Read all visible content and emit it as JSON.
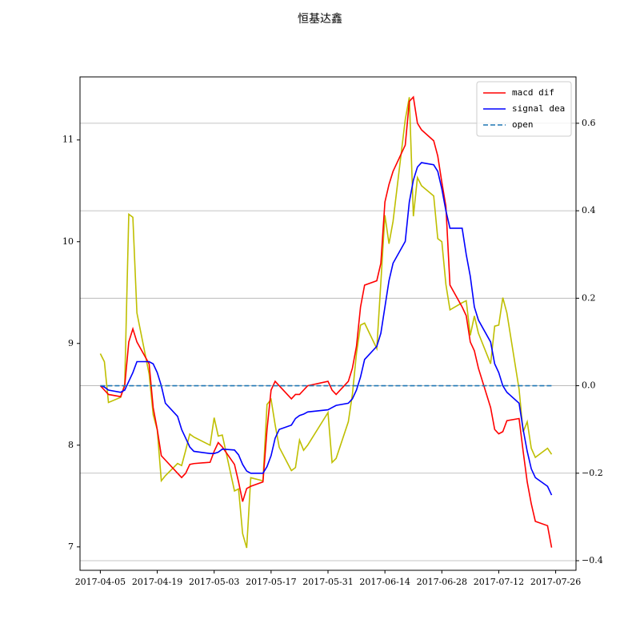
{
  "chart_data": {
    "type": "line",
    "title": "恒基达鑫",
    "x": [
      "2017-04-05",
      "2017-04-06",
      "2017-04-07",
      "2017-04-10",
      "2017-04-11",
      "2017-04-12",
      "2017-04-13",
      "2017-04-14",
      "2017-04-17",
      "2017-04-18",
      "2017-04-19",
      "2017-04-20",
      "2017-04-21",
      "2017-04-24",
      "2017-04-25",
      "2017-04-26",
      "2017-04-27",
      "2017-04-28",
      "2017-05-02",
      "2017-05-03",
      "2017-05-04",
      "2017-05-05",
      "2017-05-08",
      "2017-05-09",
      "2017-05-10",
      "2017-05-11",
      "2017-05-12",
      "2017-05-15",
      "2017-05-16",
      "2017-05-17",
      "2017-05-18",
      "2017-05-19",
      "2017-05-22",
      "2017-05-23",
      "2017-05-24",
      "2017-05-25",
      "2017-05-26",
      "2017-05-31",
      "2017-06-01",
      "2017-06-02",
      "2017-06-05",
      "2017-06-06",
      "2017-06-07",
      "2017-06-08",
      "2017-06-09",
      "2017-06-12",
      "2017-06-13",
      "2017-06-14",
      "2017-06-15",
      "2017-06-16",
      "2017-06-19",
      "2017-06-20",
      "2017-06-21",
      "2017-06-22",
      "2017-06-23",
      "2017-06-26",
      "2017-06-27",
      "2017-06-28",
      "2017-06-29",
      "2017-06-30",
      "2017-07-03",
      "2017-07-04",
      "2017-07-05",
      "2017-07-06",
      "2017-07-07",
      "2017-07-10",
      "2017-07-11",
      "2017-07-12",
      "2017-07-13",
      "2017-07-14",
      "2017-07-17",
      "2017-07-18",
      "2017-07-19",
      "2017-07-20",
      "2017-07-21",
      "2017-07-24",
      "2017-07-25"
    ],
    "series": [
      {
        "color": "#bfbf00",
        "axis": "y",
        "values": [
          8.9,
          8.82,
          8.42,
          8.47,
          8.6,
          10.27,
          10.24,
          9.3,
          8.7,
          8.3,
          8.15,
          7.65,
          7.7,
          7.82,
          7.8,
          7.95,
          8.11,
          8.08,
          8.0,
          8.27,
          8.09,
          8.1,
          7.55,
          7.57,
          7.13,
          6.99,
          7.68,
          7.65,
          8.4,
          8.45,
          8.2,
          7.98,
          7.75,
          7.78,
          8.05,
          7.95,
          8.0,
          8.32,
          7.83,
          7.87,
          8.23,
          8.5,
          8.9,
          9.18,
          9.2,
          8.95,
          9.6,
          10.26,
          9.98,
          10.2,
          11.2,
          11.42,
          10.25,
          10.63,
          10.55,
          10.45,
          10.03,
          10.0,
          9.58,
          9.33,
          9.4,
          9.42,
          9.08,
          9.27,
          9.1,
          8.8,
          9.17,
          9.18,
          9.45,
          9.3,
          8.55,
          8.13,
          8.23,
          7.97,
          7.88,
          7.97,
          7.91
        ]
      },
      {
        "name": "macd dif",
        "color": "#ff0000",
        "axis": "y2",
        "values": [
          0,
          -0.01,
          -0.02,
          -0.025,
          0,
          0.1,
          0.13,
          0.1,
          0.05,
          -0.05,
          -0.1,
          -0.16,
          -0.17,
          -0.2,
          -0.21,
          -0.2,
          -0.18,
          -0.178,
          -0.175,
          -0.15,
          -0.13,
          -0.14,
          -0.18,
          -0.22,
          -0.265,
          -0.235,
          -0.23,
          -0.22,
          -0.1,
          -0.01,
          0.01,
          0,
          -0.03,
          -0.02,
          -0.02,
          -0.01,
          0,
          0.01,
          -0.01,
          -0.02,
          0.01,
          0.04,
          0.09,
          0.18,
          0.23,
          0.24,
          0.28,
          0.42,
          0.46,
          0.49,
          0.55,
          0.65,
          0.66,
          0.6,
          0.585,
          0.56,
          0.525,
          0.465,
          0.41,
          0.23,
          0.18,
          0.16,
          0.1,
          0.08,
          0.04,
          -0.05,
          -0.1,
          -0.11,
          -0.105,
          -0.08,
          -0.075,
          -0.15,
          -0.22,
          -0.27,
          -0.31,
          -0.32,
          -0.37
        ]
      },
      {
        "name": "signal dea",
        "color": "#0000ff",
        "axis": "y2",
        "values": [
          0,
          -0.003,
          -0.01,
          -0.015,
          -0.01,
          0.01,
          0.03,
          0.055,
          0.055,
          0.05,
          0.03,
          0,
          -0.04,
          -0.07,
          -0.1,
          -0.12,
          -0.14,
          -0.15,
          -0.155,
          -0.155,
          -0.152,
          -0.145,
          -0.147,
          -0.158,
          -0.18,
          -0.195,
          -0.2,
          -0.2,
          -0.185,
          -0.16,
          -0.12,
          -0.1,
          -0.09,
          -0.075,
          -0.068,
          -0.065,
          -0.06,
          -0.055,
          -0.05,
          -0.045,
          -0.04,
          -0.03,
          -0.01,
          0.02,
          0.06,
          0.09,
          0.12,
          0.18,
          0.24,
          0.28,
          0.33,
          0.42,
          0.47,
          0.5,
          0.51,
          0.505,
          0.49,
          0.45,
          0.4,
          0.36,
          0.36,
          0.3,
          0.25,
          0.18,
          0.15,
          0.1,
          0.05,
          0.03,
          0,
          -0.015,
          -0.04,
          -0.1,
          -0.15,
          -0.19,
          -0.21,
          -0.23,
          -0.25
        ]
      },
      {
        "name": "open",
        "color": "#1f77b4",
        "axis": "y2",
        "dashed": true,
        "values": [
          0,
          0,
          0,
          0,
          0,
          0,
          0,
          0,
          0,
          0,
          0,
          0,
          0,
          0,
          0,
          0,
          0,
          0,
          0,
          0,
          0,
          0,
          0,
          0,
          0,
          0,
          0,
          0,
          0,
          0,
          0,
          0,
          0,
          0,
          0,
          0,
          0,
          0,
          0,
          0,
          0,
          0,
          0,
          0,
          0,
          0,
          0,
          0,
          0,
          0,
          0,
          0,
          0,
          0,
          0,
          0,
          0,
          0,
          0,
          0,
          0,
          0,
          0,
          0,
          0,
          0,
          0,
          0,
          0,
          0,
          0,
          0,
          0,
          0,
          0,
          0,
          0
        ]
      }
    ],
    "xlim": [
      "2017-03-31",
      "2017-07-31"
    ],
    "xticks": [
      "2017-04-05",
      "2017-04-19",
      "2017-05-03",
      "2017-05-17",
      "2017-05-31",
      "2017-06-14",
      "2017-06-28",
      "2017-07-12",
      "2017-07-26"
    ],
    "ylim": [
      6.77,
      11.62
    ],
    "yticks": [
      7,
      8,
      9,
      10,
      11
    ],
    "y2lim": [
      -0.422,
      0.706
    ],
    "y2ticks": [
      {
        "value": -0.4,
        "label": "−0.4"
      },
      {
        "value": -0.2,
        "label": "−0.2"
      },
      {
        "value": 0,
        "label": "0.0"
      },
      0.2,
      0.4,
      0.6
    ],
    "grid": "y2",
    "legend": "upper right"
  }
}
